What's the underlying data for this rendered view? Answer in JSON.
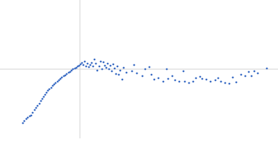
{
  "chart_data": {
    "type": "scatter",
    "color": "#3b6cc4",
    "xlim": [
      -115,
      285
    ],
    "ylim": [
      -100,
      100
    ],
    "series": [
      {
        "color": "#3b6cc4",
        "x": [
          -82,
          -80,
          -77,
          -75,
          -72,
          -70,
          -68,
          -65,
          -63,
          -61,
          -58,
          -56,
          -54,
          -52,
          -50,
          -48,
          -46,
          -44,
          -41,
          -39,
          -37,
          -35,
          -32,
          -30,
          -28,
          -26,
          -23,
          -21,
          -19,
          -16,
          -14,
          -12,
          -10,
          -7,
          -5,
          -3,
          -1,
          1,
          3,
          5,
          7,
          9,
          11,
          13,
          15,
          17,
          19,
          21,
          23,
          25,
          28,
          30,
          32,
          34,
          36,
          38,
          40,
          42,
          44,
          46,
          48,
          50,
          52,
          54,
          56,
          58,
          61,
          63,
          67,
          75,
          78,
          82,
          90,
          94,
          100,
          103,
          107,
          113,
          120,
          125,
          127,
          133,
          137,
          143,
          149,
          151,
          157,
          163,
          167,
          173,
          176,
          182,
          188,
          195,
          199,
          203,
          209,
          215,
          220,
          225,
          232,
          238,
          243,
          247,
          251,
          256,
          269
        ],
        "values": [
          -78,
          -75,
          -72,
          -70,
          -68,
          -67,
          -63,
          -59,
          -56,
          -53,
          -50,
          -46,
          -43,
          -40,
          -37,
          -34,
          -31,
          -29,
          -27,
          -24,
          -22,
          -20,
          -18,
          -16,
          -14,
          -12,
          -10,
          -9,
          -7,
          -5,
          -4,
          -2,
          0,
          1,
          2,
          4,
          5,
          7,
          9,
          6,
          11,
          4,
          8,
          3,
          6,
          9,
          4,
          14,
          8,
          -2,
          4,
          11,
          0,
          10,
          5,
          2,
          8,
          0,
          5,
          -3,
          7,
          1,
          -7,
          4,
          -8,
          -2,
          -15,
          2,
          -5,
          -3,
          6,
          -6,
          -10,
          0,
          3,
          -8,
          -15,
          -13,
          -18,
          0,
          -14,
          -10,
          -16,
          -18,
          -3,
          -18,
          -20,
          -18,
          -13,
          -11,
          -14,
          -15,
          -18,
          -16,
          -13,
          -18,
          -20,
          -21,
          -12,
          -19,
          -8,
          -10,
          -4,
          -10,
          -3,
          -6,
          1
        ]
      }
    ]
  }
}
